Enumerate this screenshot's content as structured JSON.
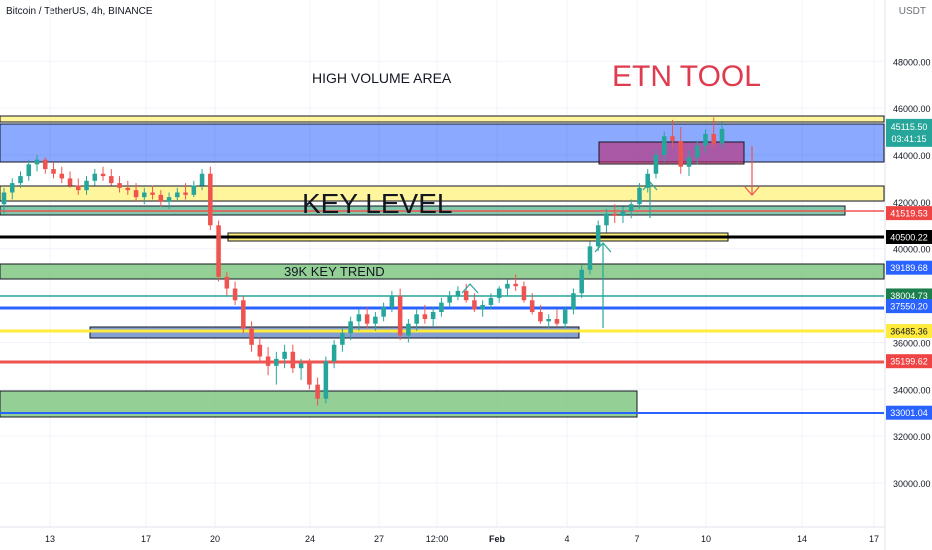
{
  "header": {
    "title": "Bitcoin / TetherUS, 4h, BINANCE",
    "currency": "USDT"
  },
  "chart_data": {
    "type": "candlestick",
    "title": "Bitcoin / TetherUS, 4h, BINANCE",
    "y_ticks": [
      "48000.00",
      "46000.00",
      "44000.00",
      "42000.00",
      "40000.00",
      "38000.00",
      "36000.00",
      "34000.00",
      "32000.00",
      "30000.00"
    ],
    "y_tick_values": [
      48000,
      46000,
      44000,
      42000,
      40000,
      38000,
      36000,
      34000,
      32000,
      30000
    ],
    "x_ticks": [
      "13",
      "17",
      "20",
      "24",
      "27",
      "12:00",
      "Feb",
      "4",
      "7",
      "10",
      "14",
      "17"
    ],
    "last_price": {
      "value": "45115.50",
      "countdown": "03:41:15",
      "color": "#26a69a"
    },
    "price_labels": [
      {
        "value": "41519.53",
        "level": 41519.53,
        "color": "#ef4444"
      },
      {
        "value": "40500.22",
        "level": 40500.22,
        "color": "#000000"
      },
      {
        "value": "39189.68",
        "level": 39189.68,
        "color": "#2962ff"
      },
      {
        "value": "38004.73",
        "level": 38004.73,
        "color": "#1b7f4b"
      },
      {
        "value": "37550.20",
        "level": 37550.2,
        "color": "#2962ff"
      },
      {
        "value": "36485.36",
        "level": 36485.36,
        "color": "#ffeb3b"
      },
      {
        "value": "35199.62",
        "level": 35199.62,
        "color": "#ef4444"
      },
      {
        "value": "33001.04",
        "level": 33001.04,
        "color": "#2962ff"
      }
    ],
    "annotations": [
      {
        "text": "HIGH VOLUME AREA",
        "color": "#131722"
      },
      {
        "text": "ETN TOOL",
        "color": "#e03a4e"
      },
      {
        "text": "KEY LEVEL",
        "color": "#131722"
      },
      {
        "text": "39K KEY TREND",
        "color": "#131722"
      }
    ],
    "colors": {
      "up": "#26a69a",
      "down": "#ef5350"
    },
    "candles": [
      [
        41900,
        42600,
        41500,
        42400
      ],
      [
        42400,
        43000,
        42100,
        42800
      ],
      [
        42800,
        43300,
        42600,
        43100
      ],
      [
        43100,
        43800,
        42900,
        43600
      ],
      [
        43600,
        44000,
        43300,
        43800
      ],
      [
        43800,
        43900,
        43200,
        43400
      ],
      [
        43400,
        43700,
        43000,
        43200
      ],
      [
        43200,
        43500,
        42800,
        43000
      ],
      [
        43000,
        43300,
        42600,
        42700
      ],
      [
        42700,
        43000,
        42300,
        42500
      ],
      [
        42500,
        43100,
        42300,
        42900
      ],
      [
        42900,
        43400,
        42700,
        43200
      ],
      [
        43200,
        43500,
        42900,
        43100
      ],
      [
        43100,
        43400,
        42700,
        42800
      ],
      [
        42800,
        43100,
        42400,
        42600
      ],
      [
        42600,
        42900,
        42300,
        42500
      ],
      [
        42500,
        42800,
        42000,
        42200
      ],
      [
        42200,
        42600,
        41900,
        42400
      ],
      [
        42400,
        42700,
        42100,
        42300
      ],
      [
        42300,
        42500,
        41800,
        42000
      ],
      [
        42000,
        42400,
        41700,
        42200
      ],
      [
        42200,
        42600,
        42000,
        42400
      ],
      [
        42400,
        42800,
        42100,
        42300
      ],
      [
        42300,
        42900,
        42200,
        42700
      ],
      [
        42700,
        43400,
        42500,
        43200
      ],
      [
        43200,
        43500,
        40800,
        41000
      ],
      [
        41000,
        41200,
        38600,
        38800
      ],
      [
        38800,
        39000,
        38000,
        38300
      ],
      [
        38300,
        38600,
        37600,
        37800
      ],
      [
        37800,
        38000,
        36400,
        36600
      ],
      [
        36600,
        36900,
        35600,
        35900
      ],
      [
        35900,
        36200,
        35200,
        35400
      ],
      [
        35400,
        35800,
        34600,
        35000
      ],
      [
        35000,
        35600,
        34200,
        35300
      ],
      [
        35300,
        35900,
        34900,
        35600
      ],
      [
        35600,
        35900,
        34700,
        34900
      ],
      [
        34900,
        35300,
        34400,
        35100
      ],
      [
        35100,
        35300,
        34000,
        34200
      ],
      [
        34200,
        34500,
        33300,
        33600
      ],
      [
        33600,
        35400,
        33400,
        35200
      ],
      [
        35200,
        36100,
        34900,
        35900
      ],
      [
        35900,
        36600,
        35600,
        36400
      ],
      [
        36400,
        37100,
        36100,
        36900
      ],
      [
        36900,
        37400,
        36500,
        37200
      ],
      [
        37200,
        37500,
        36600,
        36800
      ],
      [
        36800,
        37300,
        36500,
        37100
      ],
      [
        37100,
        37700,
        36900,
        37500
      ],
      [
        37500,
        38200,
        37300,
        38000
      ],
      [
        38000,
        38300,
        36100,
        36300
      ],
      [
        36300,
        37000,
        36000,
        36800
      ],
      [
        36800,
        37400,
        36500,
        37200
      ],
      [
        37200,
        37600,
        36800,
        37000
      ],
      [
        37000,
        37500,
        36700,
        37300
      ],
      [
        37300,
        37900,
        37100,
        37700
      ],
      [
        37700,
        38200,
        37500,
        38000
      ],
      [
        38000,
        38400,
        37800,
        38200
      ],
      [
        38200,
        38500,
        37700,
        37800
      ],
      [
        37800,
        38100,
        37300,
        37400
      ],
      [
        37400,
        37800,
        37100,
        37600
      ],
      [
        37600,
        38100,
        37400,
        37900
      ],
      [
        37900,
        38400,
        37700,
        38300
      ],
      [
        38300,
        38700,
        38000,
        38500
      ],
      [
        38500,
        38900,
        38200,
        38400
      ],
      [
        38400,
        38600,
        37700,
        37800
      ],
      [
        37800,
        38100,
        37200,
        37300
      ],
      [
        37300,
        37600,
        36800,
        36900
      ],
      [
        36900,
        37200,
        36600,
        37000
      ],
      [
        37000,
        37400,
        36700,
        36800
      ],
      [
        36800,
        37500,
        36600,
        37400
      ],
      [
        37400,
        38300,
        37200,
        38100
      ],
      [
        38100,
        39300,
        37900,
        39100
      ],
      [
        39100,
        40300,
        38900,
        40100
      ],
      [
        40100,
        41200,
        39900,
        41000
      ],
      [
        41000,
        41700,
        40700,
        41500
      ],
      [
        41500,
        41900,
        41100,
        41400
      ],
      [
        41400,
        41800,
        41100,
        41600
      ],
      [
        41600,
        42100,
        41300,
        41900
      ],
      [
        41900,
        42800,
        41700,
        42600
      ],
      [
        42600,
        43400,
        42400,
        43200
      ],
      [
        43200,
        44200,
        43000,
        44000
      ],
      [
        44000,
        45000,
        43700,
        44800
      ],
      [
        44800,
        45500,
        44300,
        44600
      ],
      [
        44600,
        45200,
        43200,
        43500
      ],
      [
        43500,
        44200,
        43100,
        43900
      ],
      [
        43900,
        44600,
        43600,
        44400
      ],
      [
        44400,
        45100,
        44100,
        44900
      ],
      [
        44900,
        45600,
        44300,
        44500
      ],
      [
        44500,
        45400,
        44300,
        45115
      ]
    ]
  }
}
